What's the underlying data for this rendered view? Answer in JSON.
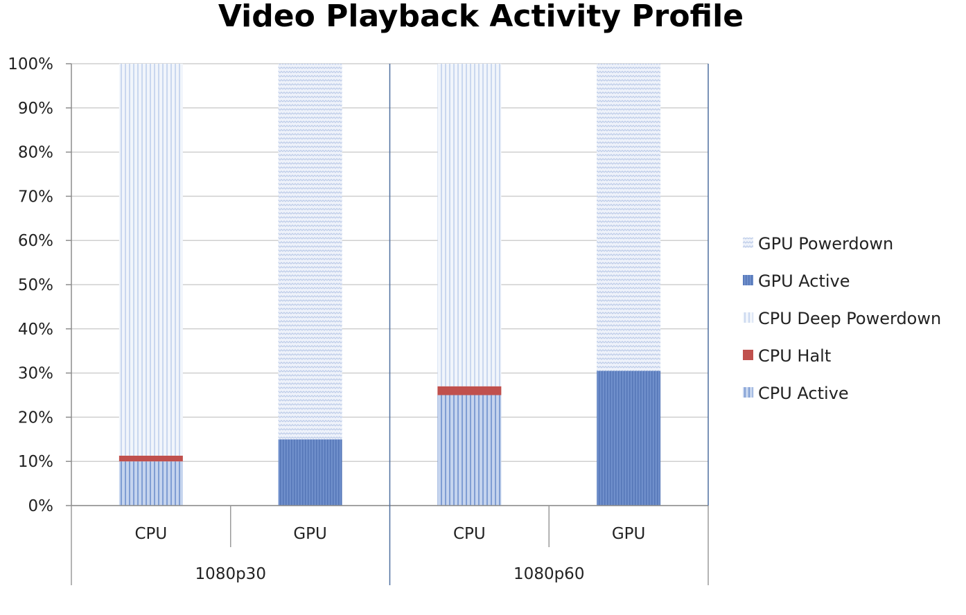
{
  "chart_data": {
    "type": "bar",
    "stacked": true,
    "percent": true,
    "title": "Video Playback Activity Profile",
    "xlabel": "",
    "ylabel": "",
    "ylim": [
      0,
      100
    ],
    "y_ticks": [
      "0%",
      "10%",
      "20%",
      "30%",
      "40%",
      "50%",
      "60%",
      "70%",
      "80%",
      "90%",
      "100%"
    ],
    "groups": [
      "1080p30",
      "1080p60"
    ],
    "categories": [
      "CPU",
      "GPU",
      "CPU",
      "GPU"
    ],
    "category_group": [
      "1080p30",
      "1080p30",
      "1080p60",
      "1080p60"
    ],
    "series": [
      {
        "name": "CPU Active",
        "values": [
          10,
          0,
          25,
          0
        ],
        "color": "#a9bee3",
        "pattern": "vertical-lines"
      },
      {
        "name": "CPU Halt",
        "values": [
          1.3,
          0,
          2,
          0
        ],
        "color": "#c0504d",
        "pattern": "solid"
      },
      {
        "name": "CPU Deep Powerdown",
        "values": [
          88.7,
          0,
          73,
          0
        ],
        "color": "#dbe5f4",
        "pattern": "vertical-lines"
      },
      {
        "name": "GPU Active",
        "values": [
          0,
          15,
          0,
          30.5
        ],
        "color": "#6b8cc8",
        "pattern": "dotted"
      },
      {
        "name": "GPU Powerdown",
        "values": [
          0,
          85,
          0,
          69.5
        ],
        "color": "#dfe7f4",
        "pattern": "zigzag"
      }
    ],
    "legend_order": [
      "GPU Powerdown",
      "GPU Active",
      "CPU Deep Powerdown",
      "CPU Halt",
      "CPU Active"
    ],
    "legend_position": "right",
    "grid": true
  }
}
